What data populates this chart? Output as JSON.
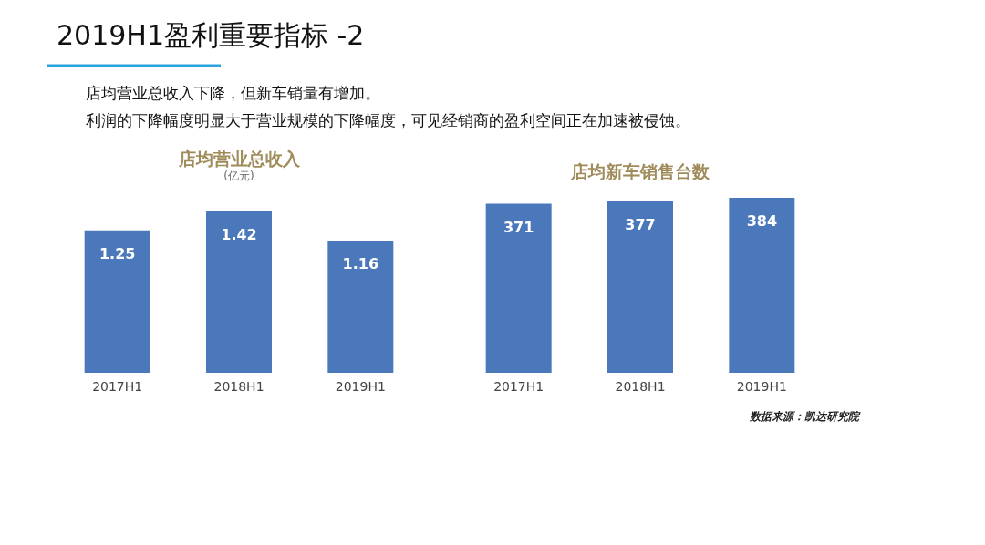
{
  "chart_data": [
    {
      "type": "bar",
      "title": "店均营业总收入",
      "subtitle": "(亿元)",
      "categories": [
        "2017H1",
        "2018H1",
        "2019H1"
      ],
      "values": [
        1.25,
        1.42,
        1.16
      ],
      "color": "#4a78bb",
      "data_labels": true,
      "annotations": [
        "2019H1盈利重要指标 -2",
        "店均营业总收入下降，但新车销量有增加。",
        "利润的下降幅度明显大于营业规模的下降幅度，可见经销商的盈利空间正在加速被侵蚀。"
      ]
    },
    {
      "type": "bar",
      "title": "店均新车销售台数",
      "categories": [
        "2017H1",
        "2018H1",
        "2019H1"
      ],
      "values": [
        371,
        377,
        384
      ],
      "color": "#4a78bb",
      "data_labels": true,
      "annotations": [
        "数据来源：凯达研究院"
      ]
    }
  ]
}
